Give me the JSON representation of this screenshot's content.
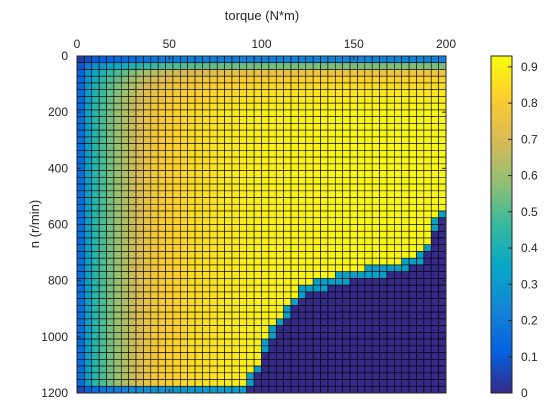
{
  "chart_data": {
    "type": "heatmap",
    "title": "",
    "xlabel": "torque (N*m)",
    "ylabel": "n (r/min)",
    "xlim": [
      0,
      200
    ],
    "ylim": [
      0,
      1200
    ],
    "x_axis_position": "top",
    "y_axis_direction": "reversed",
    "x_ticks": [
      0,
      50,
      100,
      150,
      200
    ],
    "x_tick_labels": [
      "0",
      "50",
      "100",
      "150",
      "200"
    ],
    "y_ticks": [
      0,
      200,
      400,
      600,
      800,
      1000,
      1200
    ],
    "y_tick_labels": [
      "0",
      "200",
      "400",
      "600",
      "800",
      "1000",
      "1200"
    ],
    "grid_cells": {
      "columns": 50,
      "rows": 50
    },
    "grid_edges_visible": true,
    "colormap": "parula",
    "colormap_stops": [
      "#352a87",
      "#0363e1",
      "#1485d4",
      "#06a7c6",
      "#38b99e",
      "#92bf73",
      "#d9ba56",
      "#fcce2e",
      "#f9fb0e"
    ],
    "value_range": [
      0,
      0.93
    ],
    "colorbar": {
      "position": "right",
      "ticks": [
        0,
        0.1,
        0.2,
        0.3,
        0.4,
        0.5,
        0.6,
        0.7,
        0.8,
        0.9
      ],
      "tick_labels": [
        "0",
        "0.1",
        "0.2",
        "0.3",
        "0.4",
        "0.5",
        "0.6",
        "0.7",
        "0.8",
        "0.9"
      ]
    },
    "efficiency_profile_by_torque": {
      "torque": [
        0,
        4,
        8,
        12,
        16,
        20,
        25,
        30,
        35,
        40,
        45,
        50,
        60,
        70,
        80,
        100,
        130,
        160,
        200
      ],
      "efficiency": [
        0.05,
        0.25,
        0.4,
        0.47,
        0.52,
        0.57,
        0.62,
        0.67,
        0.72,
        0.76,
        0.79,
        0.81,
        0.84,
        0.86,
        0.88,
        0.9,
        0.91,
        0.92,
        0.92
      ]
    },
    "low_speed_gradient": {
      "speed": [
        0,
        25,
        50,
        75,
        100,
        150,
        200
      ],
      "efficiency_scale": [
        0.05,
        0.45,
        0.8,
        0.88,
        0.93,
        0.97,
        1.0
      ]
    },
    "zero_efficiency_boundary": {
      "torque": [
        88,
        100,
        103,
        110,
        115,
        120,
        130,
        150,
        170,
        180,
        188,
        192,
        195,
        200
      ],
      "speed": [
        1200,
        1100,
        1000,
        950,
        900,
        850,
        820,
        780,
        760,
        740,
        710,
        650,
        580,
        550
      ]
    }
  }
}
